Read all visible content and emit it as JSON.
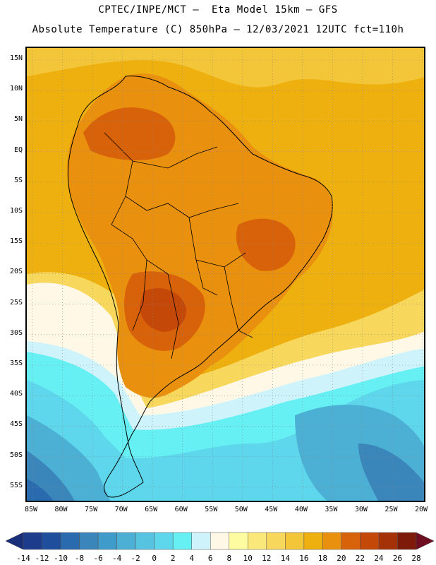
{
  "title_line1": "CPTEC/INPE/MCT –  Eta Model 15km – GFS",
  "title_line2": "Absolute Temperature (C) 850hPa – 12/03/2021 12UTC fct=110h",
  "lat_labels": [
    "15N",
    "10N",
    "5N",
    "EQ",
    "5S",
    "10S",
    "15S",
    "20S",
    "25S",
    "30S",
    "35S",
    "40S",
    "45S",
    "50S",
    "55S"
  ],
  "lon_labels": [
    "85W",
    "80W",
    "75W",
    "70W",
    "65W",
    "60W",
    "55W",
    "50W",
    "45W",
    "40W",
    "35W",
    "30W",
    "25W",
    "20W"
  ],
  "colorbar": {
    "ticks": [
      "-14",
      "-12",
      "-10",
      "-8",
      "-6",
      "-4",
      "-2",
      "0",
      "2",
      "4",
      "6",
      "8",
      "10",
      "12",
      "14",
      "16",
      "18",
      "20",
      "22",
      "24",
      "26",
      "28"
    ],
    "colors": [
      "#1e3c8c",
      "#1f4f9c",
      "#2a6aae",
      "#3a86bb",
      "#3f9bc9",
      "#4cb0d4",
      "#56c3e0",
      "#5ed6ec",
      "#66f0f4",
      "#cff3fb",
      "#fff8e6",
      "#fdfca0",
      "#fbe87a",
      "#f8d85c",
      "#f2c638",
      "#eeb00e",
      "#e9900e",
      "#d8620a",
      "#c44808",
      "#a43206",
      "#7e1a0a"
    ],
    "under_color": "#1a2f7a",
    "over_color": "#6e0e20"
  },
  "field_colors": {
    "ocean_north": "#eeb00e",
    "ocean_north_light": "#f2c638",
    "continent": "#e9900e",
    "hot_core": "#d8620a",
    "hotter_core": "#c44808",
    "warm_band": "#f8d85c",
    "pale_band": "#fff8e6",
    "cool_band": "#cff3fb",
    "cyan": "#66f0f4",
    "light_blue": "#5ed6ec",
    "mid_blue": "#4cb0d4",
    "deep_blue": "#3a86bb",
    "deeper_blue": "#2a6aae"
  }
}
